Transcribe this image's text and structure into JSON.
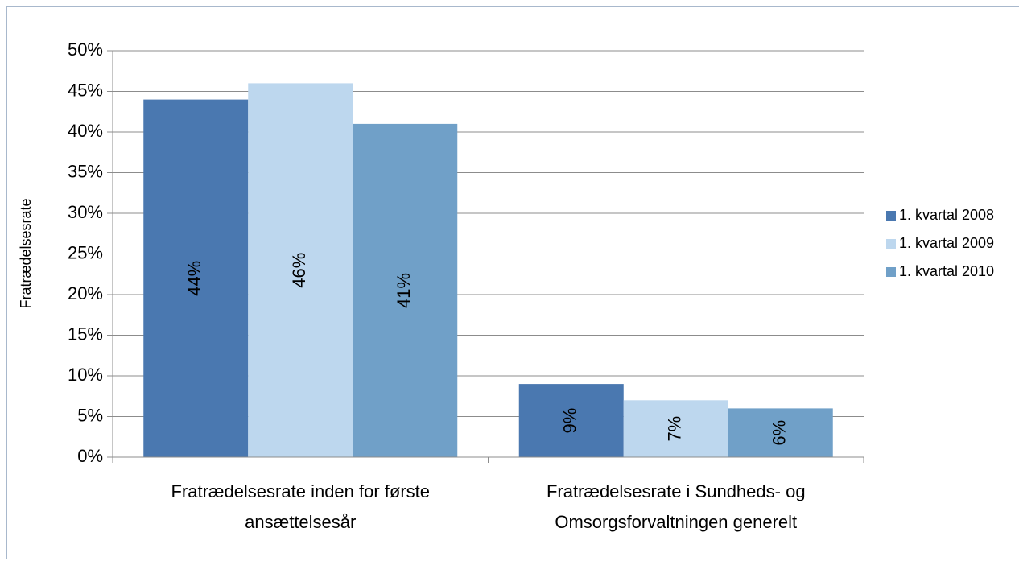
{
  "chart_data": {
    "type": "bar",
    "y_label": "Fratrædelsesrate",
    "categories": [
      "Fratrædelsesrate inden for første ansættelsesår",
      "Fratrædelsesrate i Sundheds- og Omsorgsforvaltningen generelt"
    ],
    "series": [
      {
        "name": "1. kvartal 2008",
        "color": "#4a78b0",
        "values": [
          44,
          9
        ],
        "value_labels": [
          "44%",
          "9%"
        ]
      },
      {
        "name": "1. kvartal 2009",
        "color": "#bdd7ee",
        "values": [
          46,
          7
        ],
        "value_labels": [
          "46%",
          "7%"
        ]
      },
      {
        "name": "1. kvartal 2010",
        "color": "#70a0c8",
        "values": [
          41,
          6
        ],
        "value_labels": [
          "41%",
          "6%"
        ]
      }
    ],
    "ylim": [
      0,
      50
    ],
    "yticks": [
      {
        "value": 0,
        "label": "0%"
      },
      {
        "value": 5,
        "label": "5%"
      },
      {
        "value": 10,
        "label": "10%"
      },
      {
        "value": 15,
        "label": "15%"
      },
      {
        "value": 20,
        "label": "20%"
      },
      {
        "value": 25,
        "label": "25%"
      },
      {
        "value": 30,
        "label": "30%"
      },
      {
        "value": 35,
        "label": "35%"
      },
      {
        "value": 40,
        "label": "40%"
      },
      {
        "value": 45,
        "label": "45%"
      },
      {
        "value": 50,
        "label": "50%"
      }
    ],
    "grid": true,
    "legend": "right"
  }
}
